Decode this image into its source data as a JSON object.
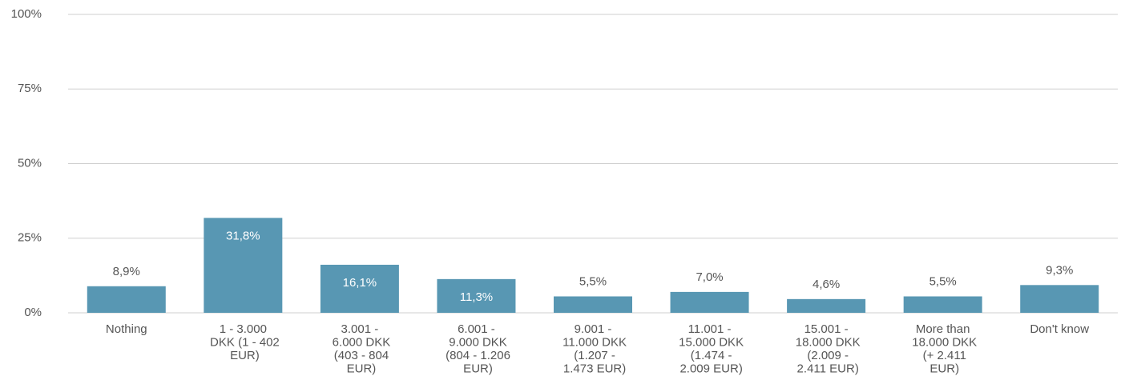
{
  "chart_data": {
    "type": "bar",
    "categories": [
      "Nothing",
      "1 - 3.000 DKK (1 - 402 EUR)",
      "3.001 - 6.000 DKK (403 - 804 EUR)",
      "6.001 - 9.000 DKK (804 - 1.206 EUR)",
      "9.001 - 11.000 DKK (1.207 - 1.473 EUR)",
      "11.001 - 15.000 DKK (1.474 - 2.009 EUR)",
      "15.001 - 18.000 DKK (2.009 - 2.411 EUR)",
      "More than 18.000 DKK (+ 2.411 EUR)",
      "Don't know"
    ],
    "values": [
      8.9,
      31.8,
      16.1,
      11.3,
      5.5,
      7.0,
      4.6,
      5.5,
      9.3
    ],
    "value_labels": [
      "8,9%",
      "31,8%",
      "16,1%",
      "11,3%",
      "5,5%",
      "7,0%",
      "4,6%",
      "5,5%",
      "9,3%"
    ],
    "color": "#5897b3",
    "ylim": [
      0,
      100
    ],
    "yticks": [
      {
        "value": 0,
        "label": "0%"
      },
      {
        "value": 25,
        "label": "25%"
      },
      {
        "value": 50,
        "label": "50%"
      },
      {
        "value": 75,
        "label": "75%"
      },
      {
        "value": 100,
        "label": "100%"
      }
    ],
    "grid": true
  }
}
